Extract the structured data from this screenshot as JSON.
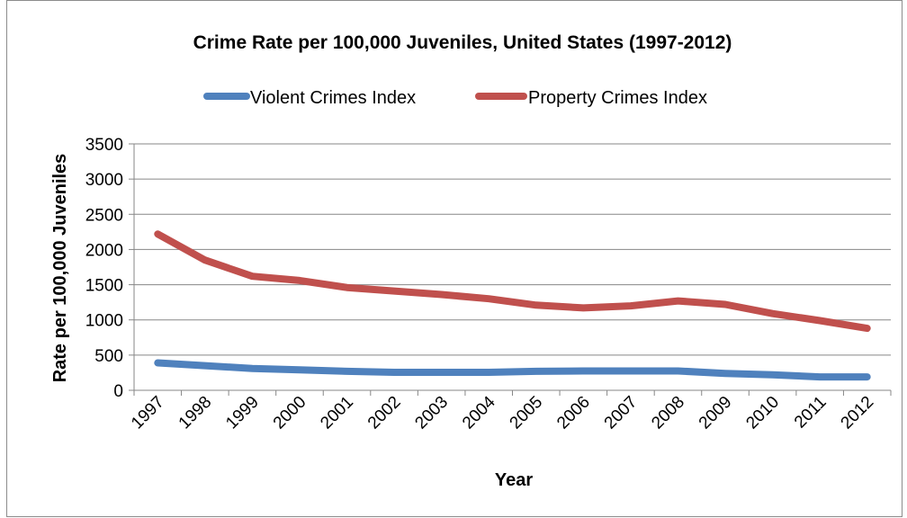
{
  "chart_data": {
    "type": "line",
    "title": "Crime Rate per 100,000 Juveniles, United States (1997-2012)",
    "xlabel": "Year",
    "ylabel": "Rate per 100,000 Juveniles",
    "categories": [
      "1997",
      "1998",
      "1999",
      "2000",
      "2001",
      "2002",
      "2003",
      "2004",
      "2005",
      "2006",
      "2007",
      "2008",
      "2009",
      "2010",
      "2011",
      "2012"
    ],
    "ylim": [
      0,
      3500
    ],
    "yticks": [
      "0",
      "500",
      "1000",
      "1500",
      "2000",
      "2500",
      "3000",
      "3500"
    ],
    "grid": true,
    "legend_position": "top",
    "series": [
      {
        "name": "Violent Crimes Index",
        "color": "#4f81bd",
        "values": [
          390,
          350,
          310,
          290,
          270,
          255,
          255,
          255,
          270,
          275,
          275,
          275,
          240,
          220,
          190,
          190
        ]
      },
      {
        "name": "Property Crimes Index",
        "color": "#c0504d",
        "values": [
          2220,
          1850,
          1620,
          1560,
          1460,
          1410,
          1360,
          1300,
          1210,
          1170,
          1200,
          1270,
          1220,
          1090,
          990,
          880
        ]
      }
    ]
  }
}
